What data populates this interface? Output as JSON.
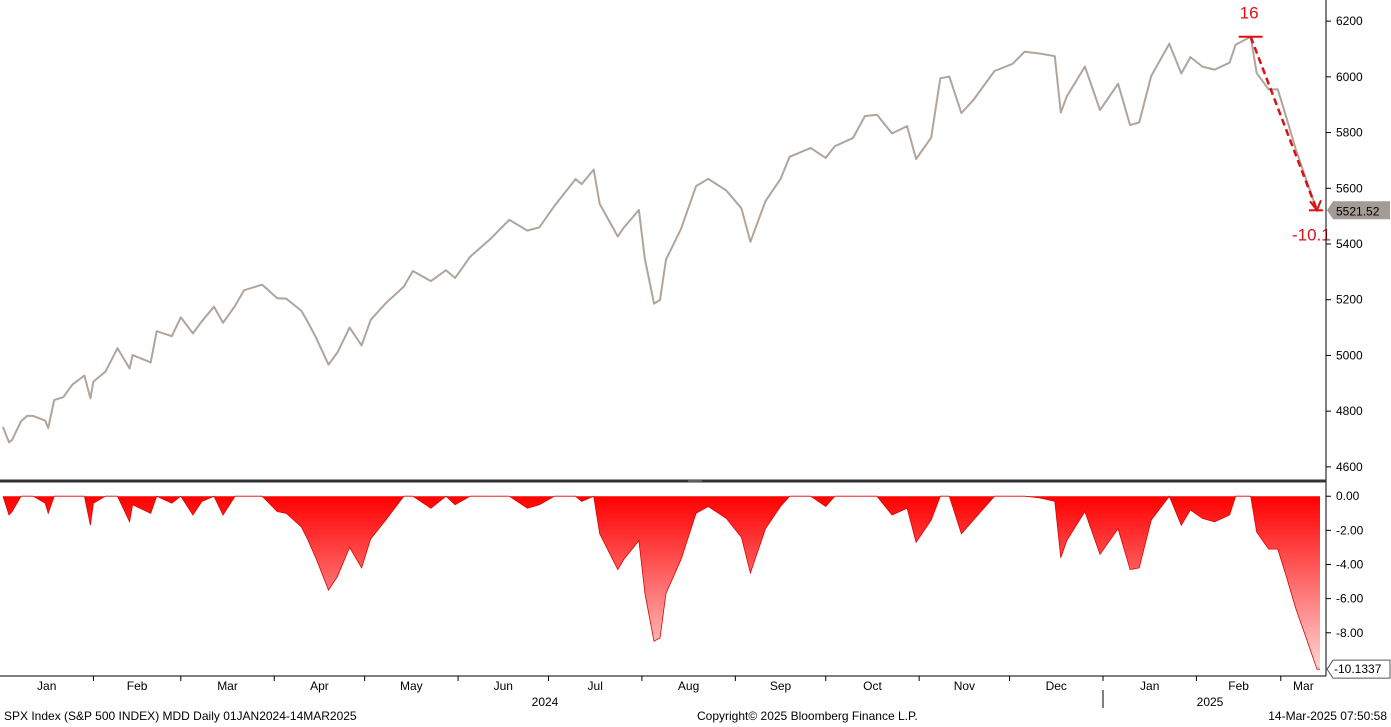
{
  "footer": {
    "left": "SPX Index (S&P 500 INDEX) MDD  Daily 01JAN2024-14MAR2025",
    "center": "Copyright© 2025 Bloomberg Finance L.P.",
    "right": "14-Mar-2025 07:50:58"
  },
  "colors": {
    "price_line": "#b0a59c",
    "drawdown_top": "#ff0000",
    "drawdown_bottom": "#ffd6d6",
    "annotation": "#dd1111",
    "last_value_box": "#a39b95",
    "divider": "#333333"
  },
  "chart_data": [
    {
      "type": "line",
      "series": [
        {
          "name": "SPX Index",
          "x": [
            "2024-01-02",
            "2024-01-04",
            "2024-01-05",
            "2024-01-08",
            "2024-01-10",
            "2024-01-12",
            "2024-01-16",
            "2024-01-17",
            "2024-01-19",
            "2024-01-22",
            "2024-01-25",
            "2024-01-29",
            "2024-01-31",
            "2024-02-01",
            "2024-02-05",
            "2024-02-09",
            "2024-02-13",
            "2024-02-14",
            "2024-02-20",
            "2024-02-22",
            "2024-02-27",
            "2024-03-01",
            "2024-03-05",
            "2024-03-08",
            "2024-03-12",
            "2024-03-15",
            "2024-03-19",
            "2024-03-22",
            "2024-03-28",
            "2024-04-02",
            "2024-04-05",
            "2024-04-10",
            "2024-04-12",
            "2024-04-15",
            "2024-04-19",
            "2024-04-22",
            "2024-04-26",
            "2024-04-30",
            "2024-05-03",
            "2024-05-08",
            "2024-05-14",
            "2024-05-17",
            "2024-05-23",
            "2024-05-28",
            "2024-05-31",
            "2024-06-05",
            "2024-06-12",
            "2024-06-18",
            "2024-06-24",
            "2024-06-28",
            "2024-07-03",
            "2024-07-10",
            "2024-07-12",
            "2024-07-16",
            "2024-07-18",
            "2024-07-24",
            "2024-07-26",
            "2024-07-31",
            "2024-08-02",
            "2024-08-05",
            "2024-08-07",
            "2024-08-09",
            "2024-08-14",
            "2024-08-19",
            "2024-08-23",
            "2024-08-29",
            "2024-09-03",
            "2024-09-06",
            "2024-09-11",
            "2024-09-16",
            "2024-09-19",
            "2024-09-26",
            "2024-10-01",
            "2024-10-04",
            "2024-10-10",
            "2024-10-14",
            "2024-10-18",
            "2024-10-23",
            "2024-10-28",
            "2024-10-31",
            "2024-11-05",
            "2024-11-08",
            "2024-11-11",
            "2024-11-15",
            "2024-11-19",
            "2024-11-26",
            "2024-12-02",
            "2024-12-06",
            "2024-12-11",
            "2024-12-16",
            "2024-12-18",
            "2024-12-20",
            "2024-12-26",
            "2024-12-31",
            "2025-01-06",
            "2025-01-10",
            "2025-01-13",
            "2025-01-17",
            "2025-01-23",
            "2025-01-27",
            "2025-01-30",
            "2025-02-03",
            "2025-02-07",
            "2025-02-12",
            "2025-02-14",
            "2025-02-19",
            "2025-02-21",
            "2025-02-25",
            "2025-02-28",
            "2025-03-03",
            "2025-03-06",
            "2025-03-10",
            "2025-03-13",
            "2025-03-14"
          ],
          "values": [
            4742,
            4688,
            4697,
            4764,
            4783,
            4783,
            4766,
            4739,
            4840,
            4850,
            4895,
            4928,
            4846,
            4906,
            4942,
            5026,
            4953,
            5001,
            4975,
            5087,
            5069,
            5137,
            5079,
            5123,
            5175,
            5117,
            5178,
            5234,
            5254,
            5205,
            5204,
            5160,
            5123,
            5061,
            4967,
            5011,
            5100,
            5036,
            5128,
            5187,
            5247,
            5303,
            5267,
            5306,
            5278,
            5354,
            5421,
            5487,
            5448,
            5460,
            5537,
            5633,
            5615,
            5667,
            5544,
            5427,
            5459,
            5522,
            5346,
            5186,
            5199,
            5344,
            5455,
            5608,
            5634,
            5592,
            5528,
            5408,
            5554,
            5633,
            5713,
            5745,
            5709,
            5751,
            5780,
            5859,
            5864,
            5797,
            5823,
            5705,
            5782,
            5995,
            6001,
            5870,
            5917,
            6021,
            6047,
            6090,
            6084,
            6074,
            5872,
            5930,
            6037,
            5881,
            5975,
            5827,
            5836,
            6003,
            6119,
            6012,
            6071,
            6037,
            6026,
            6051,
            6115,
            6144,
            6013,
            5955,
            5955,
            5849,
            5739,
            5614,
            5521,
            5521
          ]
        }
      ],
      "ylim": [
        4560,
        6240
      ],
      "yticks": [
        4600,
        4800,
        5000,
        5200,
        5400,
        5600,
        5800,
        6000,
        6200
      ],
      "last_value_label": "5521.52",
      "annotations": [
        {
          "text": "16",
          "x": "2025-02-19",
          "y": 6144
        },
        {
          "text": "-10.1",
          "x": "2025-03-13",
          "y": 5521
        }
      ]
    },
    {
      "type": "area",
      "series": [
        {
          "name": "MDD",
          "x": [
            "2024-01-02",
            "2024-01-04",
            "2024-01-05",
            "2024-01-08",
            "2024-01-10",
            "2024-01-12",
            "2024-01-16",
            "2024-01-17",
            "2024-01-19",
            "2024-01-22",
            "2024-01-25",
            "2024-01-29",
            "2024-01-31",
            "2024-02-01",
            "2024-02-05",
            "2024-02-09",
            "2024-02-13",
            "2024-02-14",
            "2024-02-20",
            "2024-02-22",
            "2024-02-27",
            "2024-03-01",
            "2024-03-05",
            "2024-03-08",
            "2024-03-12",
            "2024-03-15",
            "2024-03-19",
            "2024-03-22",
            "2024-03-28",
            "2024-04-02",
            "2024-04-05",
            "2024-04-10",
            "2024-04-12",
            "2024-04-15",
            "2024-04-19",
            "2024-04-22",
            "2024-04-26",
            "2024-04-30",
            "2024-05-03",
            "2024-05-08",
            "2024-05-14",
            "2024-05-17",
            "2024-05-23",
            "2024-05-28",
            "2024-05-31",
            "2024-06-05",
            "2024-06-12",
            "2024-06-18",
            "2024-06-24",
            "2024-06-28",
            "2024-07-03",
            "2024-07-10",
            "2024-07-12",
            "2024-07-16",
            "2024-07-18",
            "2024-07-24",
            "2024-07-26",
            "2024-07-31",
            "2024-08-02",
            "2024-08-05",
            "2024-08-07",
            "2024-08-09",
            "2024-08-14",
            "2024-08-19",
            "2024-08-23",
            "2024-08-29",
            "2024-09-03",
            "2024-09-06",
            "2024-09-11",
            "2024-09-16",
            "2024-09-19",
            "2024-09-26",
            "2024-10-01",
            "2024-10-04",
            "2024-10-10",
            "2024-10-14",
            "2024-10-18",
            "2024-10-23",
            "2024-10-28",
            "2024-10-31",
            "2024-11-05",
            "2024-11-08",
            "2024-11-11",
            "2024-11-15",
            "2024-11-19",
            "2024-11-26",
            "2024-12-02",
            "2024-12-06",
            "2024-12-11",
            "2024-12-16",
            "2024-12-18",
            "2024-12-20",
            "2024-12-26",
            "2024-12-31",
            "2025-01-06",
            "2025-01-10",
            "2025-01-13",
            "2025-01-17",
            "2025-01-23",
            "2025-01-27",
            "2025-01-30",
            "2025-02-03",
            "2025-02-07",
            "2025-02-12",
            "2025-02-14",
            "2025-02-19",
            "2025-02-21",
            "2025-02-25",
            "2025-02-28",
            "2025-03-03",
            "2025-03-06",
            "2025-03-10",
            "2025-03-13",
            "2025-03-14"
          ],
          "values": [
            0,
            -1.1,
            -0.9,
            0,
            0,
            0,
            -0.4,
            -1.0,
            0,
            0,
            0,
            0,
            -1.7,
            -0.4,
            0,
            0,
            -1.5,
            -0.5,
            -1.0,
            0,
            -0.4,
            0,
            -1.1,
            -0.3,
            0,
            -1.1,
            0,
            0,
            0,
            -0.9,
            -1.0,
            -1.8,
            -2.5,
            -3.7,
            -5.5,
            -4.7,
            -3.0,
            -4.2,
            -2.5,
            -1.4,
            0,
            0,
            -0.7,
            0,
            -0.5,
            0,
            0,
            0,
            -0.7,
            -0.5,
            0,
            0,
            -0.3,
            0,
            -2.2,
            -4.3,
            -3.7,
            -2.6,
            -5.7,
            -8.5,
            -8.3,
            -5.7,
            -3.7,
            -1.0,
            -0.6,
            -1.3,
            -2.4,
            -4.5,
            -1.9,
            -0.6,
            0,
            0,
            -0.6,
            0,
            0,
            0,
            0,
            -1.1,
            -0.7,
            -2.7,
            -1.4,
            0,
            0,
            -2.2,
            -1.4,
            0,
            0,
            0,
            -0.1,
            -0.3,
            -3.6,
            -2.6,
            -0.9,
            -3.4,
            -1.9,
            -4.3,
            -4.2,
            -1.4,
            0,
            -1.7,
            -0.8,
            -1.3,
            -1.5,
            -1.1,
            0,
            0,
            -2.1,
            -3.1,
            -3.1,
            -4.8,
            -6.6,
            -8.6,
            -10.1337,
            -10.1337
          ]
        }
      ],
      "ylim": [
        -10.3,
        0.6
      ],
      "yticks": [
        "0.00",
        "-2.00",
        "-4.00",
        "-6.00",
        "-8.00"
      ],
      "last_value_label": "-10.1337",
      "x_month_labels": [
        "Jan",
        "Feb",
        "Mar",
        "Apr",
        "May",
        "Jun",
        "Jul",
        "Aug",
        "Sep",
        "Oct",
        "Nov",
        "Dec",
        "Jan",
        "Feb",
        "Mar"
      ],
      "x_year_labels": [
        "2024",
        "2025"
      ]
    }
  ]
}
